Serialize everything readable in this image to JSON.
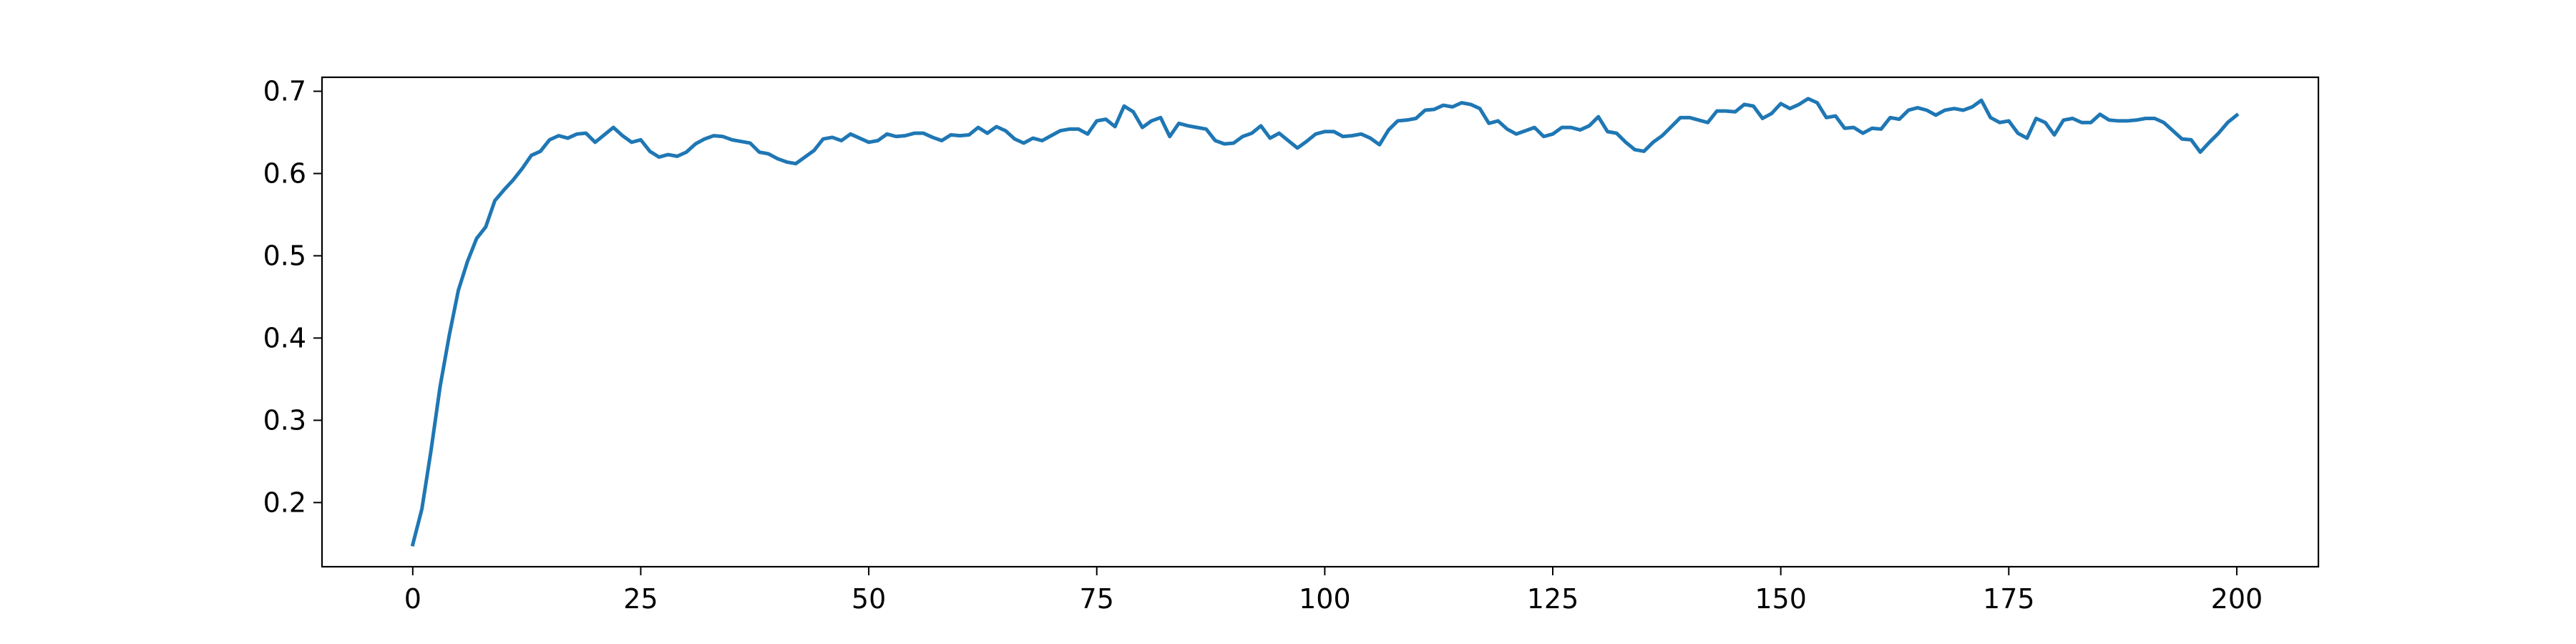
{
  "chart_data": {
    "type": "line",
    "title": "",
    "xlabel": "",
    "ylabel": "",
    "xlim": [
      -9.95,
      208.95
    ],
    "ylim": [
      0.122,
      0.717
    ],
    "grid": false,
    "x_ticks": [
      {
        "value": 0,
        "label": "0"
      },
      {
        "value": 25,
        "label": "25"
      },
      {
        "value": 50,
        "label": "50"
      },
      {
        "value": 75,
        "label": "75"
      },
      {
        "value": 100,
        "label": "100"
      },
      {
        "value": 125,
        "label": "125"
      },
      {
        "value": 150,
        "label": "150"
      },
      {
        "value": 175,
        "label": "175"
      },
      {
        "value": 200,
        "label": "200"
      }
    ],
    "y_ticks": [
      {
        "value": 0.2,
        "label": "0.2"
      },
      {
        "value": 0.3,
        "label": "0.3"
      },
      {
        "value": 0.4,
        "label": "0.4"
      },
      {
        "value": 0.5,
        "label": "0.5"
      },
      {
        "value": 0.6,
        "label": "0.6"
      },
      {
        "value": 0.7,
        "label": "0.7"
      }
    ],
    "series": [
      {
        "color": "#1f77b4",
        "x_start": 0,
        "x_step": 1,
        "values": [
          0.149,
          0.192,
          0.263,
          0.341,
          0.403,
          0.458,
          0.493,
          0.521,
          0.535,
          0.567,
          0.58,
          0.592,
          0.606,
          0.622,
          0.627,
          0.641,
          0.646,
          0.643,
          0.648,
          0.649,
          0.638,
          0.647,
          0.656,
          0.646,
          0.638,
          0.641,
          0.627,
          0.62,
          0.623,
          0.621,
          0.626,
          0.636,
          0.642,
          0.646,
          0.645,
          0.641,
          0.639,
          0.637,
          0.626,
          0.624,
          0.618,
          0.614,
          0.612,
          0.62,
          0.628,
          0.642,
          0.644,
          0.64,
          0.648,
          0.643,
          0.638,
          0.64,
          0.648,
          0.645,
          0.646,
          0.649,
          0.649,
          0.644,
          0.64,
          0.647,
          0.646,
          0.647,
          0.656,
          0.649,
          0.657,
          0.652,
          0.642,
          0.637,
          0.643,
          0.64,
          0.646,
          0.652,
          0.654,
          0.654,
          0.648,
          0.664,
          0.666,
          0.657,
          0.682,
          0.675,
          0.656,
          0.664,
          0.668,
          0.645,
          0.661,
          0.658,
          0.656,
          0.654,
          0.64,
          0.636,
          0.637,
          0.645,
          0.649,
          0.658,
          0.643,
          0.649,
          0.64,
          0.631,
          0.639,
          0.648,
          0.651,
          0.651,
          0.645,
          0.646,
          0.648,
          0.643,
          0.635,
          0.653,
          0.664,
          0.665,
          0.667,
          0.677,
          0.678,
          0.683,
          0.681,
          0.686,
          0.684,
          0.679,
          0.661,
          0.664,
          0.654,
          0.648,
          0.652,
          0.656,
          0.645,
          0.648,
          0.656,
          0.656,
          0.653,
          0.658,
          0.669,
          0.651,
          0.649,
          0.638,
          0.629,
          0.627,
          0.638,
          0.646,
          0.657,
          0.668,
          0.668,
          0.665,
          0.662,
          0.676,
          0.676,
          0.675,
          0.684,
          0.682,
          0.667,
          0.673,
          0.685,
          0.679,
          0.684,
          0.691,
          0.686,
          0.668,
          0.67,
          0.655,
          0.656,
          0.649,
          0.655,
          0.654,
          0.668,
          0.666,
          0.677,
          0.68,
          0.677,
          0.671,
          0.677,
          0.679,
          0.677,
          0.681,
          0.689,
          0.668,
          0.662,
          0.664,
          0.649,
          0.643,
          0.667,
          0.662,
          0.647,
          0.665,
          0.667,
          0.662,
          0.662,
          0.672,
          0.665,
          0.664,
          0.664,
          0.665,
          0.667,
          0.667,
          0.662,
          0.652,
          0.642,
          0.641,
          0.626,
          0.638,
          0.649,
          0.662,
          0.671
        ]
      }
    ]
  }
}
